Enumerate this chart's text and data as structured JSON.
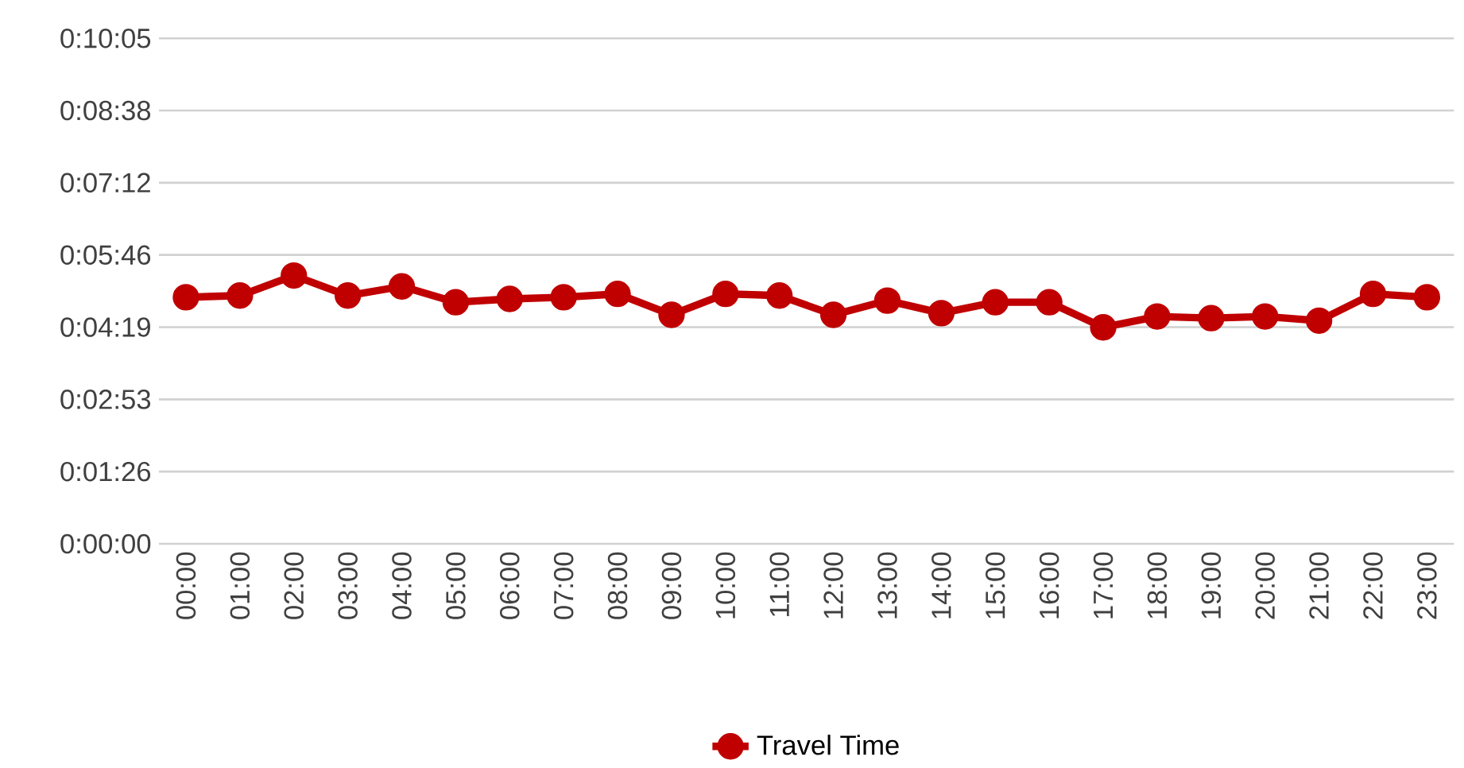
{
  "chart_data": {
    "type": "line",
    "categories": [
      "00:00",
      "01:00",
      "02:00",
      "03:00",
      "04:00",
      "05:00",
      "06:00",
      "07:00",
      "08:00",
      "09:00",
      "10:00",
      "11:00",
      "12:00",
      "13:00",
      "14:00",
      "15:00",
      "16:00",
      "17:00",
      "18:00",
      "19:00",
      "20:00",
      "21:00",
      "22:00",
      "23:00"
    ],
    "series": [
      {
        "name": "Travel Time",
        "color": "#c00000",
        "values": [
          295,
          297,
          321,
          297,
          308,
          289,
          293,
          295,
          299,
          274,
          299,
          297,
          274,
          291,
          276,
          289,
          289,
          259,
          272,
          270,
          272,
          267,
          299,
          295
        ]
      }
    ],
    "ylim": [
      0,
      605
    ],
    "yticks": [
      {
        "value": 0,
        "label": "0:00:00"
      },
      {
        "value": 86.4,
        "label": "0:01:26"
      },
      {
        "value": 172.8,
        "label": "0:02:53"
      },
      {
        "value": 259.2,
        "label": "0:04:19"
      },
      {
        "value": 345.6,
        "label": "0:05:46"
      },
      {
        "value": 432,
        "label": "0:07:12"
      },
      {
        "value": 518.4,
        "label": "0:08:38"
      },
      {
        "value": 604.8,
        "label": "0:10:05"
      }
    ],
    "grid": "y",
    "legend": "bottom",
    "marker": "circle",
    "line_style": "solid"
  }
}
